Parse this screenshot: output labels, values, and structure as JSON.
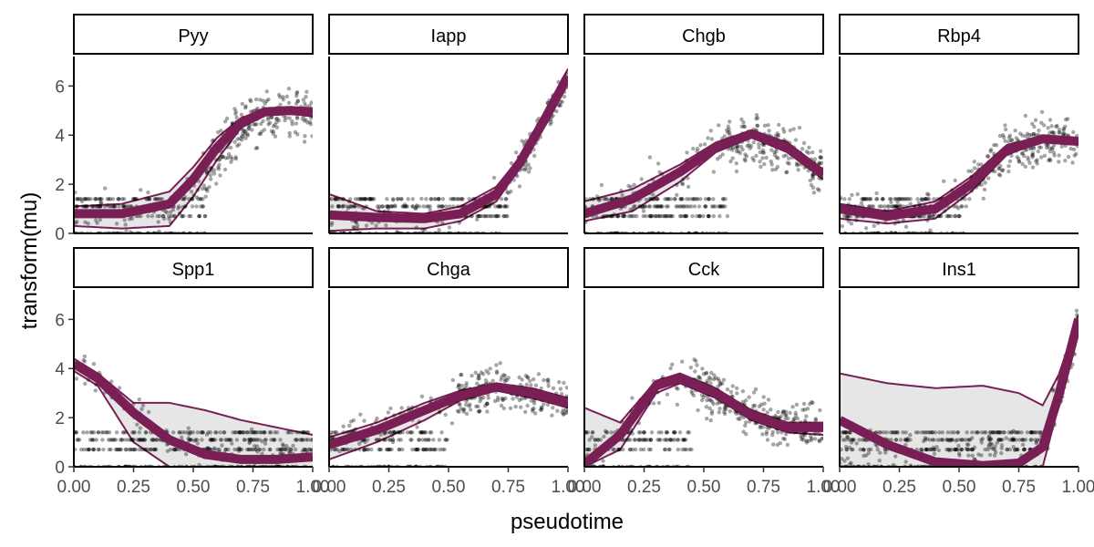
{
  "chart_data": {
    "type": "scatter",
    "layout": "faceted-grid",
    "xlabel": "pseudotime",
    "ylabel": "transform(mu)",
    "xlim": [
      0,
      1
    ],
    "ylim": [
      0,
      7.2
    ],
    "x_ticks": [
      0,
      0.25,
      0.5,
      0.75,
      1
    ],
    "x_tick_labels": [
      "0.00",
      "0.25",
      "0.50",
      "0.75",
      "1.00"
    ],
    "y_ticks": [
      0,
      2,
      4,
      6
    ],
    "y_tick_labels": [
      "0",
      "2",
      "4",
      "6"
    ],
    "grid": false,
    "colors": {
      "fit": "#7a1f55",
      "band": "#e6e6e6",
      "points": "#000000",
      "strip": "#ffffff"
    },
    "panels": [
      {
        "name": "Pyy",
        "fit_x": [
          0,
          0.2,
          0.4,
          0.5,
          0.6,
          0.7,
          0.8,
          0.9,
          1
        ],
        "fit_y": [
          0.8,
          0.8,
          1.2,
          2.2,
          3.5,
          4.5,
          4.95,
          5.0,
          4.95
        ],
        "band_upper": [
          1.1,
          1.2,
          1.7,
          2.7,
          3.9,
          4.7,
          5.05,
          5.1,
          5.1
        ],
        "band_lower": [
          0.3,
          0.2,
          0.3,
          1.5,
          3.0,
          4.3,
          4.8,
          4.9,
          4.75
        ],
        "point_base": [
          0.8,
          0.8,
          0.9,
          1.6,
          3.0,
          4.3,
          4.8,
          4.9,
          4.7
        ],
        "point_spread": 1.0,
        "discrete_until": 0.55
      },
      {
        "name": "Iapp",
        "fit_x": [
          0,
          0.2,
          0.4,
          0.55,
          0.7,
          0.8,
          0.9,
          1
        ],
        "fit_y": [
          0.75,
          0.65,
          0.6,
          0.8,
          1.6,
          2.9,
          4.6,
          6.4
        ],
        "band_upper": [
          1.6,
          0.9,
          0.8,
          1.1,
          1.9,
          3.1,
          4.8,
          6.7
        ],
        "band_lower": [
          0.1,
          0.2,
          0.2,
          0.5,
          1.3,
          2.7,
          4.4,
          6.2
        ],
        "point_base": [
          0.7,
          0.6,
          0.6,
          0.8,
          1.5,
          2.8,
          4.5,
          6.2
        ],
        "point_spread": 0.7,
        "discrete_until": 0.75
      },
      {
        "name": "Chgb",
        "fit_x": [
          0,
          0.2,
          0.4,
          0.55,
          0.7,
          0.85,
          1
        ],
        "fit_y": [
          0.8,
          1.4,
          2.5,
          3.5,
          4.05,
          3.5,
          2.4
        ],
        "band_upper": [
          1.3,
          1.8,
          2.8,
          3.7,
          4.2,
          3.7,
          2.6
        ],
        "band_lower": [
          0.5,
          0.9,
          2.1,
          3.3,
          3.9,
          3.3,
          2.2
        ],
        "point_base": [
          0.9,
          1.4,
          2.5,
          3.5,
          3.9,
          3.4,
          2.4
        ],
        "point_spread": 1.0,
        "discrete_until": 0.6
      },
      {
        "name": "Rbp4",
        "fit_x": [
          0,
          0.2,
          0.4,
          0.55,
          0.7,
          0.85,
          1
        ],
        "fit_y": [
          1.0,
          0.7,
          1.0,
          2.0,
          3.4,
          3.85,
          3.75
        ],
        "band_upper": [
          1.2,
          0.9,
          1.3,
          2.3,
          3.6,
          3.95,
          3.85
        ],
        "band_lower": [
          0.6,
          0.4,
          0.6,
          1.7,
          3.2,
          3.75,
          3.65
        ],
        "point_base": [
          1.0,
          0.8,
          1.1,
          2.1,
          3.4,
          3.8,
          3.7
        ],
        "point_spread": 0.9,
        "discrete_until": 0.55
      },
      {
        "name": "Spp1",
        "fit_x": [
          0,
          0.1,
          0.25,
          0.4,
          0.55,
          0.7,
          0.85,
          1
        ],
        "fit_y": [
          4.2,
          3.6,
          2.2,
          1.1,
          0.5,
          0.3,
          0.3,
          0.4
        ],
        "band_upper": [
          4.4,
          3.8,
          2.6,
          2.6,
          2.3,
          1.9,
          1.6,
          1.3
        ],
        "band_lower": [
          3.9,
          3.3,
          1.0,
          0,
          0,
          0,
          0,
          0
        ],
        "point_base": [
          4.2,
          3.7,
          2.3,
          1.0,
          0.7,
          0.7,
          0.7,
          0.7
        ],
        "point_spread": 0.6,
        "discrete_until": 2
      },
      {
        "name": "Chga",
        "fit_x": [
          0,
          0.2,
          0.4,
          0.55,
          0.7,
          0.85,
          1
        ],
        "fit_y": [
          0.9,
          1.5,
          2.3,
          2.9,
          3.25,
          3.0,
          2.6
        ],
        "band_upper": [
          1.2,
          1.8,
          2.6,
          3.1,
          3.4,
          3.2,
          2.8
        ],
        "band_lower": [
          0.3,
          1.0,
          1.9,
          2.7,
          3.1,
          2.8,
          2.4
        ],
        "point_base": [
          1.0,
          1.5,
          2.3,
          2.9,
          3.2,
          3.0,
          2.6
        ],
        "point_spread": 0.8,
        "discrete_until": 0.5
      },
      {
        "name": "Cck",
        "fit_x": [
          0,
          0.15,
          0.3,
          0.4,
          0.55,
          0.7,
          0.85,
          1
        ],
        "fit_y": [
          0.1,
          1.3,
          3.3,
          3.6,
          3.0,
          2.1,
          1.6,
          1.6
        ],
        "band_upper": [
          2.4,
          1.8,
          3.5,
          3.8,
          3.2,
          2.3,
          1.8,
          1.8
        ],
        "band_lower": [
          0,
          0.7,
          3.0,
          3.4,
          2.8,
          1.9,
          1.4,
          1.3
        ],
        "point_base": [
          0.3,
          1.3,
          3.2,
          3.6,
          3.0,
          2.1,
          1.6,
          1.6
        ],
        "point_spread": 0.9,
        "discrete_until": 0.45
      },
      {
        "name": "Ins1",
        "fit_x": [
          0,
          0.2,
          0.4,
          0.6,
          0.75,
          0.85,
          0.92,
          1
        ],
        "fit_y": [
          1.9,
          0.9,
          0.2,
          0.05,
          0.15,
          0.8,
          3.0,
          6.0
        ],
        "band_upper": [
          3.8,
          3.4,
          3.2,
          3.3,
          3.0,
          2.5,
          3.8,
          6.2
        ],
        "band_lower": [
          0,
          0,
          0,
          0,
          0,
          0,
          2.6,
          5.8
        ],
        "point_base": [
          0.7,
          0.7,
          0.7,
          0.7,
          0.7,
          0.8,
          3.0,
          5.9
        ],
        "point_spread": 0.8,
        "discrete_until": 0.85
      }
    ]
  }
}
